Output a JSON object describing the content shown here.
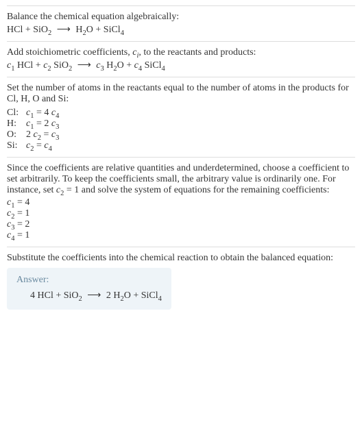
{
  "section1": {
    "intro": "Balance the chemical equation algebraically:",
    "eq_lhs1": "HCl",
    "eq_plus1": " + ",
    "eq_lhs2a": "SiO",
    "eq_lhs2b": "2",
    "eq_arrow": "⟶",
    "eq_rhs1a": "H",
    "eq_rhs1b": "2",
    "eq_rhs1c": "O",
    "eq_plus2": " + ",
    "eq_rhs2a": "SiCl",
    "eq_rhs2b": "4"
  },
  "section2": {
    "intro_a": "Add stoichiometric coefficients, ",
    "intro_ci": "c",
    "intro_sub": "i",
    "intro_b": ", to the reactants and products:",
    "c1": "c",
    "s1": "1",
    "t1": " HCl + ",
    "c2": "c",
    "s2": "2",
    "t2a": " SiO",
    "t2b": "2",
    "arrow": "⟶",
    "c3": "c",
    "s3": "3",
    "t3a": " H",
    "t3b": "2",
    "t3c": "O + ",
    "c4": "c",
    "s4": "4",
    "t4a": " SiCl",
    "t4b": "4"
  },
  "section3": {
    "intro": "Set the number of atoms in the reactants equal to the number of atoms in the products for Cl, H, O and Si:",
    "rows": [
      {
        "label": "Cl:",
        "ca": "c",
        "sa": "1",
        "mid": " = 4 ",
        "cb": "c",
        "sb": "4"
      },
      {
        "label": "H:",
        "ca": "c",
        "sa": "1",
        "mid": " = 2 ",
        "cb": "c",
        "sb": "3"
      },
      {
        "label": "O:",
        "pre": "2 ",
        "ca": "c",
        "sa": "2",
        "mid": " = ",
        "cb": "c",
        "sb": "3"
      },
      {
        "label": "Si:",
        "ca": "c",
        "sa": "2",
        "mid": " = ",
        "cb": "c",
        "sb": "4"
      }
    ]
  },
  "section4": {
    "intro_a": "Since the coefficients are relative quantities and underdetermined, choose a coefficient to set arbitrarily. To keep the coefficients small, the arbitrary value is ordinarily one. For instance, set ",
    "intro_c": "c",
    "intro_s": "2",
    "intro_b": " = 1 and solve the system of equations for the remaining coefficients:",
    "lines": [
      {
        "c": "c",
        "s": "1",
        "v": " = 4"
      },
      {
        "c": "c",
        "s": "2",
        "v": " = 1"
      },
      {
        "c": "c",
        "s": "3",
        "v": " = 2"
      },
      {
        "c": "c",
        "s": "4",
        "v": " = 1"
      }
    ]
  },
  "section5": {
    "intro": "Substitute the coefficients into the chemical reaction to obtain the balanced equation:",
    "answer_label": "Answer:",
    "eq_a": "4 HCl + SiO",
    "eq_b": "2",
    "eq_arrow": "⟶",
    "eq_c": "2 H",
    "eq_d": "2",
    "eq_e": "O + SiCl",
    "eq_f": "4"
  }
}
